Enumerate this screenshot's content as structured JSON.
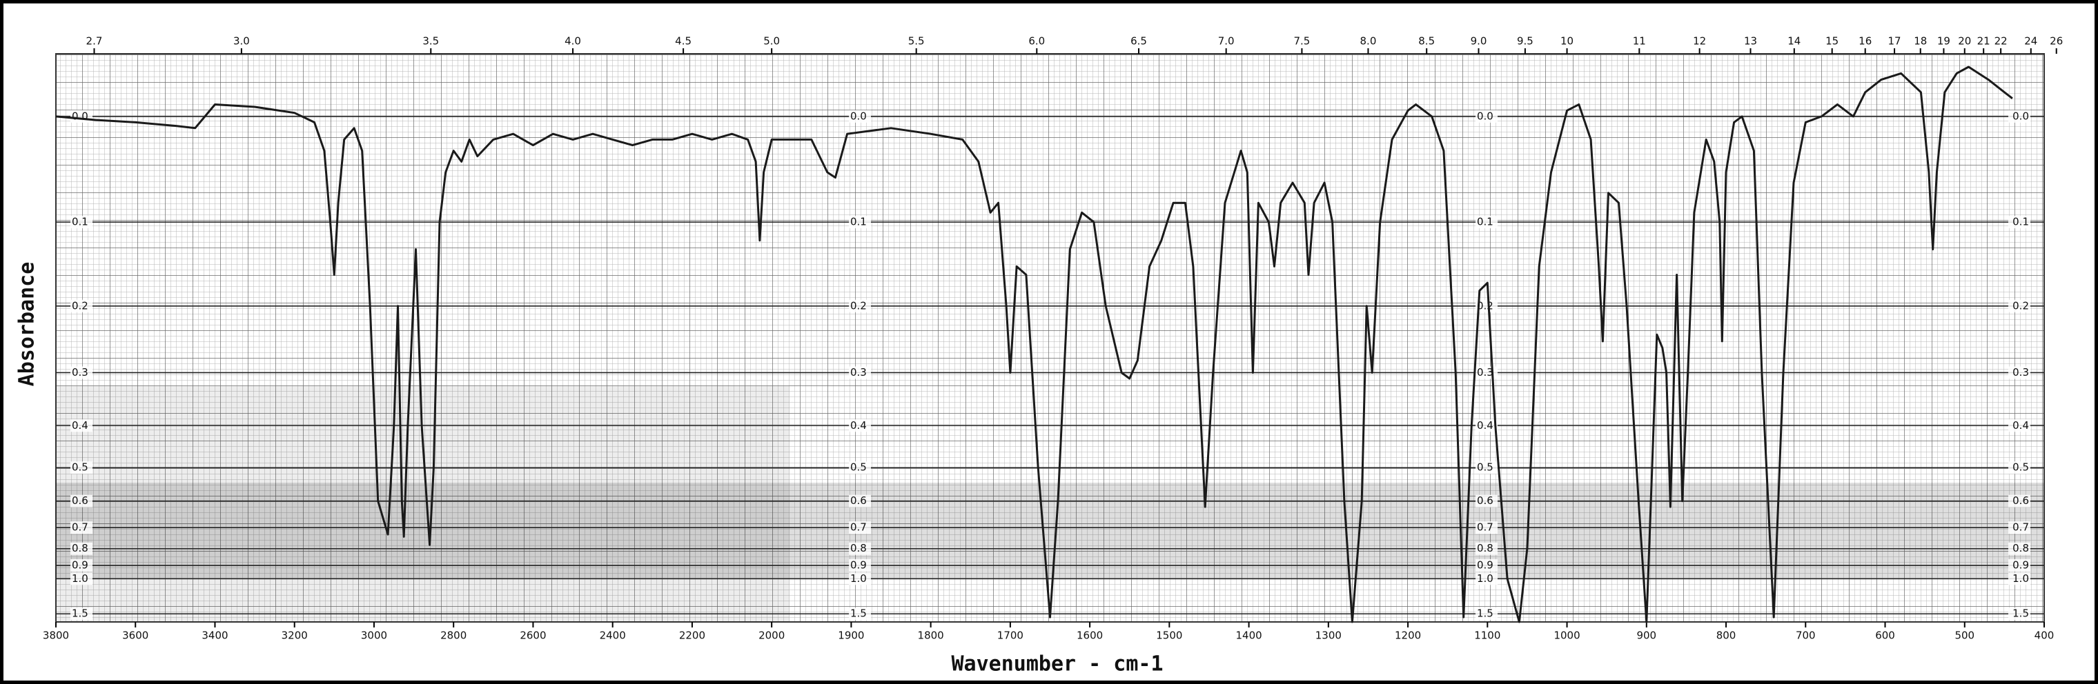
{
  "chart_data": {
    "type": "line",
    "xlabel": "Wavenumber - cm-1",
    "ylabel": "Absorbance",
    "xlim": [
      3800,
      400
    ],
    "xscale_change": 2000,
    "xticks": [
      3800,
      3600,
      3400,
      3200,
      3000,
      2800,
      2600,
      2400,
      2200,
      2000,
      1900,
      1800,
      1700,
      1600,
      1500,
      1400,
      1300,
      1200,
      1100,
      1000,
      900,
      800,
      700,
      600,
      500,
      400
    ],
    "x2ticks": [
      2.7,
      {
        "value": 3,
        "label": "3.0"
      },
      3.5,
      {
        "value": 4,
        "label": "4.0"
      },
      4.5,
      {
        "value": 5,
        "label": "5.0"
      },
      5.5,
      {
        "value": 6,
        "label": "6.0"
      },
      6.5,
      {
        "value": 7,
        "label": "7.0"
      },
      7.5,
      {
        "value": 8,
        "label": "8.0"
      },
      8.5,
      {
        "value": 9,
        "label": "9.0"
      },
      9.5,
      10,
      11,
      12,
      13,
      14,
      15,
      16,
      17,
      18,
      19,
      20,
      21,
      22,
      24,
      26
    ],
    "ylim": [
      -0.05,
      1.8
    ],
    "yticks": [
      {
        "value": 0,
        "label": "0.0"
      },
      0.1,
      0.2,
      0.3,
      0.4,
      0.5,
      0.6,
      0.7,
      0.8,
      0.9,
      {
        "value": 1,
        "label": "1.0"
      },
      1.5
    ],
    "grid": true,
    "series": [
      {
        "color": "#1a1a1a",
        "x": [
          3800,
          3700,
          3600,
          3500,
          3450,
          3400,
          3300,
          3200,
          3150,
          3125,
          3110,
          3100,
          3090,
          3075,
          3050,
          3030,
          3010,
          2990,
          2965,
          2950,
          2940,
          2930,
          2925,
          2915,
          2895,
          2880,
          2860,
          2850,
          2835,
          2820,
          2800,
          2780,
          2760,
          2740,
          2700,
          2650,
          2600,
          2550,
          2500,
          2450,
          2400,
          2350,
          2300,
          2250,
          2200,
          2150,
          2100,
          2060,
          2040,
          2030,
          2020,
          2000,
          1980,
          1950,
          1930,
          1920,
          1905,
          1850,
          1800,
          1760,
          1740,
          1725,
          1715,
          1705,
          1700,
          1692,
          1680,
          1665,
          1650,
          1640,
          1625,
          1610,
          1595,
          1580,
          1560,
          1550,
          1540,
          1525,
          1510,
          1495,
          1480,
          1470,
          1455,
          1445,
          1430,
          1410,
          1402,
          1395,
          1388,
          1375,
          1368,
          1360,
          1345,
          1330,
          1325,
          1318,
          1305,
          1295,
          1280,
          1270,
          1258,
          1252,
          1245,
          1235,
          1220,
          1200,
          1190,
          1170,
          1155,
          1140,
          1130,
          1120,
          1110,
          1100,
          1090,
          1075,
          1060,
          1050,
          1035,
          1020,
          1000,
          985,
          970,
          960,
          955,
          948,
          935,
          925,
          910,
          900,
          893,
          887,
          880,
          875,
          870,
          862,
          855,
          848,
          840,
          825,
          815,
          808,
          805,
          800,
          790,
          780,
          765,
          755,
          740,
          728,
          715,
          700,
          680,
          660,
          640,
          625,
          605,
          580,
          555,
          545,
          540,
          535,
          525,
          510,
          495,
          470,
          450,
          440
        ],
        "values": [
          0.0,
          0.003,
          0.005,
          0.008,
          0.01,
          -0.01,
          -0.008,
          -0.003,
          0.005,
          0.03,
          0.1,
          0.16,
          0.08,
          0.02,
          0.01,
          0.03,
          0.2,
          0.6,
          0.73,
          0.4,
          0.2,
          0.6,
          0.74,
          0.4,
          0.13,
          0.4,
          0.78,
          0.5,
          0.1,
          0.05,
          0.03,
          0.04,
          0.02,
          0.035,
          0.02,
          0.015,
          0.025,
          0.015,
          0.02,
          0.015,
          0.02,
          0.025,
          0.02,
          0.02,
          0.015,
          0.02,
          0.015,
          0.02,
          0.04,
          0.12,
          0.05,
          0.02,
          0.02,
          0.02,
          0.05,
          0.055,
          0.015,
          0.01,
          0.015,
          0.02,
          0.04,
          0.09,
          0.08,
          0.2,
          0.3,
          0.15,
          0.16,
          0.5,
          1.6,
          0.6,
          0.13,
          0.09,
          0.1,
          0.2,
          0.3,
          0.31,
          0.28,
          0.15,
          0.12,
          0.08,
          0.08,
          0.15,
          0.62,
          0.3,
          0.08,
          0.03,
          0.05,
          0.3,
          0.08,
          0.1,
          0.15,
          0.08,
          0.06,
          0.08,
          0.16,
          0.08,
          0.06,
          0.1,
          0.6,
          1.8,
          0.6,
          0.2,
          0.3,
          0.1,
          0.02,
          -0.005,
          -0.01,
          0.0,
          0.03,
          0.3,
          1.6,
          0.4,
          0.18,
          0.17,
          0.4,
          1.0,
          1.8,
          0.8,
          0.15,
          0.05,
          -0.005,
          -0.01,
          0.02,
          0.15,
          0.25,
          0.07,
          0.08,
          0.2,
          0.6,
          1.8,
          0.5,
          0.24,
          0.26,
          0.3,
          0.62,
          0.16,
          0.6,
          0.3,
          0.09,
          0.02,
          0.04,
          0.1,
          0.25,
          0.05,
          0.005,
          0.0,
          0.03,
          0.3,
          1.6,
          0.3,
          0.06,
          0.005,
          0.0,
          -0.01,
          0.0,
          -0.02,
          -0.03,
          -0.035,
          -0.02,
          0.05,
          0.13,
          0.05,
          -0.02,
          -0.035,
          -0.04,
          -0.03,
          -0.02,
          -0.015
        ]
      }
    ]
  }
}
